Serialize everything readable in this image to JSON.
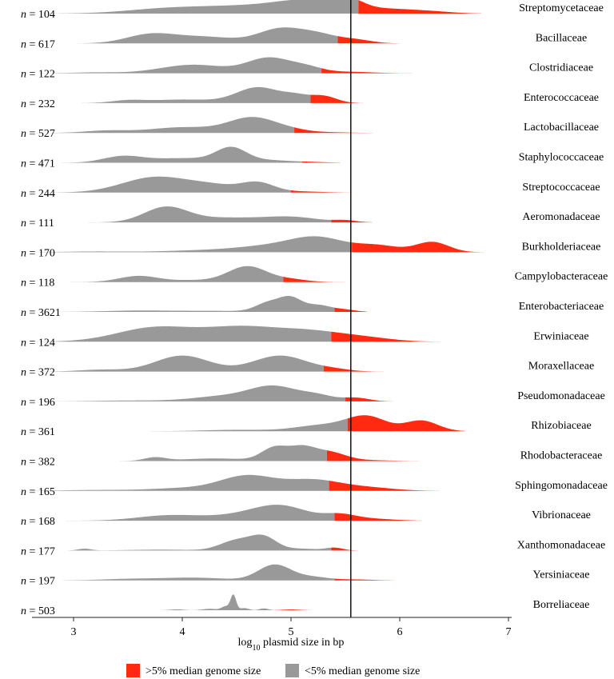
{
  "chart_data": {
    "type": "ridgeline-density",
    "xlabel": "log10 plasmid size in bp",
    "xlabel_prefix": "log",
    "xlabel_sub": "10",
    "xlabel_suffix": " plasmid size in bp",
    "xlim": [
      2.55,
      7.05
    ],
    "xticks": [
      3,
      4,
      5,
      6,
      7
    ],
    "threshold": 5.55,
    "colors": {
      "above": "#ff2a0f",
      "below": "#999999",
      "line": "#000000"
    },
    "legend": [
      {
        "label": ">5% median genome size",
        "color": "#ff2a0f"
      },
      {
        "label": "<5% median genome size",
        "color": "#999999"
      }
    ],
    "n_prefix": "n",
    "n_sep": " = ",
    "rows": [
      {
        "family": "Streptomycetaceae",
        "n": "104",
        "xmin": 2.6,
        "xmax": 6.75,
        "cut": 5.62,
        "peaks": [
          [
            3.8,
            0.22,
            0.35
          ],
          [
            4.6,
            0.55,
            0.55
          ],
          [
            5.2,
            0.7,
            0.3
          ],
          [
            5.55,
            0.55,
            0.12
          ],
          [
            5.9,
            0.28,
            0.25
          ],
          [
            6.3,
            0.12,
            0.2
          ]
        ]
      },
      {
        "family": "Bacillaceae",
        "n": "617",
        "xmin": 2.75,
        "xmax": 6.05,
        "cut": 5.43,
        "peaks": [
          [
            3.7,
            0.45,
            0.22
          ],
          [
            4.2,
            0.35,
            0.3
          ],
          [
            4.9,
            0.75,
            0.2
          ],
          [
            5.25,
            0.45,
            0.18
          ],
          [
            5.6,
            0.18,
            0.15
          ]
        ]
      },
      {
        "family": "Clostridiaceae",
        "n": "122",
        "xmin": 2.6,
        "xmax": 6.2,
        "cut": 5.28,
        "peaks": [
          [
            3.2,
            0.05,
            0.2
          ],
          [
            4.1,
            0.48,
            0.3
          ],
          [
            4.8,
            0.85,
            0.2
          ],
          [
            5.15,
            0.3,
            0.15
          ],
          [
            5.55,
            0.08,
            0.2
          ]
        ]
      },
      {
        "family": "Enterococcaceae",
        "n": "232",
        "xmin": 2.8,
        "xmax": 5.75,
        "cut": 5.18,
        "peaks": [
          [
            3.5,
            0.12,
            0.15
          ],
          [
            4.0,
            0.18,
            0.3
          ],
          [
            4.7,
            0.8,
            0.2
          ],
          [
            5.05,
            0.3,
            0.12
          ],
          [
            5.3,
            0.35,
            0.12
          ]
        ]
      },
      {
        "family": "Lactobacillaceae",
        "n": "527",
        "xmin": 2.6,
        "xmax": 5.75,
        "cut": 5.03,
        "peaks": [
          [
            3.3,
            0.12,
            0.2
          ],
          [
            4.0,
            0.3,
            0.3
          ],
          [
            4.65,
            0.82,
            0.22
          ],
          [
            5.0,
            0.1,
            0.15
          ],
          [
            5.3,
            0.04,
            0.2
          ]
        ]
      },
      {
        "family": "Staphylococcaceae",
        "n": "471",
        "xmin": 2.6,
        "xmax": 5.45,
        "cut": 5.1,
        "peaks": [
          [
            3.45,
            0.3,
            0.18
          ],
          [
            4.0,
            0.22,
            0.3
          ],
          [
            4.45,
            0.68,
            0.14
          ],
          [
            4.8,
            0.12,
            0.2
          ],
          [
            5.2,
            0.03,
            0.15
          ]
        ]
      },
      {
        "family": "Streptococcaceae",
        "n": "244",
        "xmin": 2.6,
        "xmax": 5.55,
        "cut": 5.0,
        "peaks": [
          [
            3.75,
            0.72,
            0.3
          ],
          [
            4.3,
            0.3,
            0.25
          ],
          [
            4.7,
            0.42,
            0.15
          ],
          [
            5.1,
            0.05,
            0.2
          ]
        ]
      },
      {
        "family": "Aeromonadaceae",
        "n": "111",
        "xmin": 2.6,
        "xmax": 5.75,
        "cut": 5.37,
        "peaks": [
          [
            3.85,
            0.85,
            0.2
          ],
          [
            4.4,
            0.25,
            0.3
          ],
          [
            5.0,
            0.3,
            0.25
          ],
          [
            5.5,
            0.1,
            0.1
          ]
        ]
      },
      {
        "family": "Burkholderiaceae",
        "n": "170",
        "xmin": 2.6,
        "xmax": 6.8,
        "cut": 5.56,
        "peaks": [
          [
            3.2,
            0.04,
            0.3
          ],
          [
            4.2,
            0.1,
            0.35
          ],
          [
            4.8,
            0.3,
            0.3
          ],
          [
            5.25,
            0.75,
            0.25
          ],
          [
            5.8,
            0.35,
            0.2
          ],
          [
            6.3,
            0.55,
            0.15
          ]
        ]
      },
      {
        "family": "Campylobacteraceae",
        "n": "118",
        "xmin": 2.6,
        "xmax": 5.55,
        "cut": 4.93,
        "peaks": [
          [
            3.6,
            0.35,
            0.18
          ],
          [
            4.1,
            0.1,
            0.2
          ],
          [
            4.6,
            0.9,
            0.18
          ],
          [
            5.0,
            0.15,
            0.15
          ]
        ]
      },
      {
        "family": "Enterobacteriaceae",
        "n": "3621",
        "xmin": 2.85,
        "xmax": 5.7,
        "cut": 5.4,
        "peaks": [
          [
            3.6,
            0.08,
            0.3
          ],
          [
            4.3,
            0.06,
            0.3
          ],
          [
            4.8,
            0.55,
            0.12
          ],
          [
            5.0,
            0.75,
            0.1
          ],
          [
            5.25,
            0.4,
            0.12
          ],
          [
            5.5,
            0.12,
            0.1
          ]
        ]
      },
      {
        "family": "Erwiniaceae",
        "n": "124",
        "xmin": 2.6,
        "xmax": 6.4,
        "cut": 5.37,
        "peaks": [
          [
            3.75,
            0.85,
            0.35
          ],
          [
            4.55,
            0.85,
            0.35
          ],
          [
            5.2,
            0.55,
            0.3
          ],
          [
            5.7,
            0.2,
            0.25
          ]
        ]
      },
      {
        "family": "Moraxellaceae",
        "n": "372",
        "xmin": 2.6,
        "xmax": 5.85,
        "cut": 5.3,
        "peaks": [
          [
            3.25,
            0.1,
            0.2
          ],
          [
            4.0,
            0.85,
            0.25
          ],
          [
            4.9,
            0.85,
            0.25
          ],
          [
            5.4,
            0.1,
            0.15
          ]
        ]
      },
      {
        "family": "Pseudomonadaceae",
        "n": "196",
        "xmin": 2.6,
        "xmax": 6.0,
        "cut": 5.5,
        "peaks": [
          [
            3.5,
            0.05,
            0.3
          ],
          [
            4.4,
            0.3,
            0.3
          ],
          [
            4.85,
            0.8,
            0.22
          ],
          [
            5.25,
            0.3,
            0.15
          ],
          [
            5.6,
            0.2,
            0.12
          ]
        ]
      },
      {
        "family": "Rhizobiaceae",
        "n": "361",
        "xmin": 3.7,
        "xmax": 6.6,
        "cut": 5.52,
        "peaks": [
          [
            4.5,
            0.08,
            0.3
          ],
          [
            5.3,
            0.35,
            0.25
          ],
          [
            5.7,
            0.8,
            0.18
          ],
          [
            6.2,
            0.6,
            0.15
          ]
        ]
      },
      {
        "family": "Rhodobacteraceae",
        "n": "382",
        "xmin": 2.9,
        "xmax": 6.2,
        "cut": 5.33,
        "peaks": [
          [
            3.75,
            0.2,
            0.1
          ],
          [
            4.3,
            0.15,
            0.3
          ],
          [
            4.85,
            0.75,
            0.12
          ],
          [
            5.1,
            0.7,
            0.12
          ],
          [
            5.35,
            0.5,
            0.15
          ],
          [
            5.7,
            0.05,
            0.2
          ]
        ]
      },
      {
        "family": "Sphingomonadaceae",
        "n": "165",
        "xmin": 2.6,
        "xmax": 6.5,
        "cut": 5.35,
        "peaks": [
          [
            3.2,
            0.05,
            0.3
          ],
          [
            4.0,
            0.15,
            0.3
          ],
          [
            4.6,
            0.85,
            0.25
          ],
          [
            5.2,
            0.6,
            0.25
          ],
          [
            5.7,
            0.18,
            0.25
          ]
        ]
      },
      {
        "family": "Vibrionaceae",
        "n": "168",
        "xmin": 2.6,
        "xmax": 6.2,
        "cut": 5.4,
        "peaks": [
          [
            3.9,
            0.3,
            0.3
          ],
          [
            4.5,
            0.2,
            0.25
          ],
          [
            4.9,
            0.8,
            0.25
          ],
          [
            5.45,
            0.3,
            0.15
          ],
          [
            5.75,
            0.1,
            0.2
          ]
        ]
      },
      {
        "family": "Xanthomonadaceae",
        "n": "177",
        "xmin": 2.6,
        "xmax": 5.85,
        "cut": 5.37,
        "peaks": [
          [
            3.1,
            0.1,
            0.06
          ],
          [
            3.8,
            0.05,
            0.3
          ],
          [
            4.5,
            0.55,
            0.15
          ],
          [
            4.75,
            0.7,
            0.12
          ],
          [
            5.1,
            0.1,
            0.15
          ],
          [
            5.4,
            0.15,
            0.08
          ]
        ]
      },
      {
        "family": "Yersiniaceae",
        "n": "197",
        "xmin": 2.9,
        "xmax": 5.95,
        "cut": 5.4,
        "peaks": [
          [
            3.5,
            0.06,
            0.25
          ],
          [
            4.1,
            0.12,
            0.3
          ],
          [
            4.85,
            0.7,
            0.15
          ],
          [
            5.2,
            0.15,
            0.15
          ],
          [
            5.6,
            0.04,
            0.15
          ]
        ]
      },
      {
        "family": "Borreliaceae",
        "n": "503",
        "xmin": 3.5,
        "xmax": 5.6,
        "cut": 4.85,
        "peaks": [
          [
            3.95,
            0.05,
            0.06
          ],
          [
            4.25,
            0.08,
            0.06
          ],
          [
            4.4,
            0.22,
            0.04
          ],
          [
            4.47,
            0.85,
            0.025
          ],
          [
            4.57,
            0.12,
            0.04
          ],
          [
            4.75,
            0.1,
            0.04
          ],
          [
            5.0,
            0.04,
            0.08
          ]
        ]
      }
    ]
  }
}
